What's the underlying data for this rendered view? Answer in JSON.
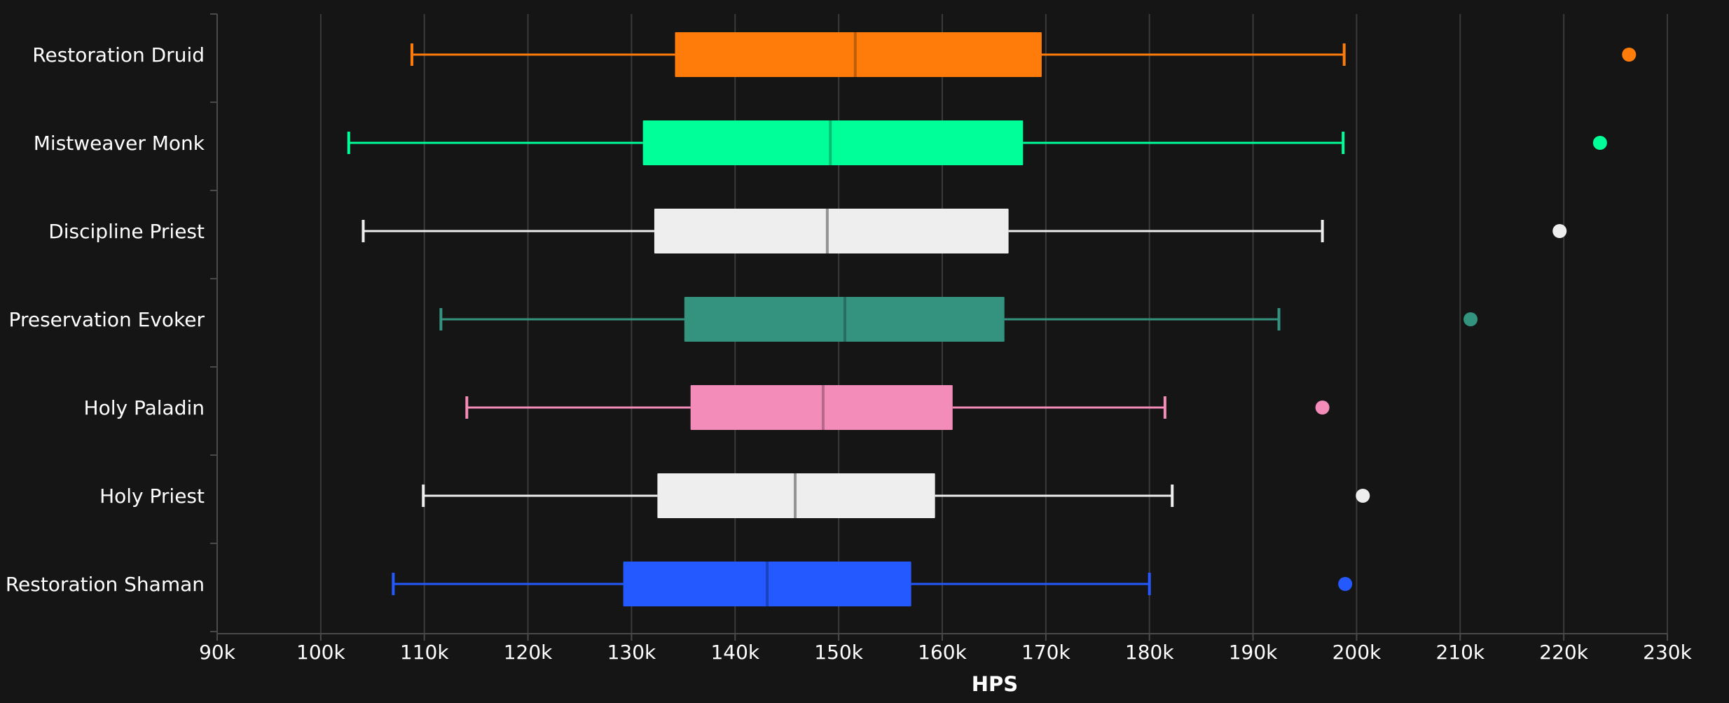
{
  "chart_data": {
    "type": "boxplot",
    "orientation": "horizontal",
    "xlabel": "HPS",
    "xlim": [
      90000,
      230000
    ],
    "x_ticks": [
      90000,
      100000,
      110000,
      120000,
      130000,
      140000,
      150000,
      160000,
      170000,
      180000,
      190000,
      200000,
      210000,
      220000,
      230000
    ],
    "x_tick_labels": [
      "90k",
      "100k",
      "110k",
      "120k",
      "130k",
      "140k",
      "150k",
      "160k",
      "170k",
      "180k",
      "190k",
      "200k",
      "210k",
      "220k",
      "230k"
    ],
    "grid": "vertical",
    "series": [
      {
        "name": "Restoration Druid",
        "color": "#ff7c0a",
        "min": 108800,
        "q1": 134200,
        "median": 151600,
        "q3": 169600,
        "max": 198800,
        "outliers": [
          226300
        ]
      },
      {
        "name": "Mistweaver Monk",
        "color": "#00ff98",
        "min": 102700,
        "q1": 131100,
        "median": 149200,
        "q3": 167800,
        "max": 198700,
        "outliers": [
          223500
        ]
      },
      {
        "name": "Discipline Priest",
        "color": "#eeeeee",
        "min": 104100,
        "q1": 132200,
        "median": 148900,
        "q3": 166400,
        "max": 196700,
        "outliers": [
          219600
        ]
      },
      {
        "name": "Preservation Evoker",
        "color": "#33937f",
        "min": 111600,
        "q1": 135100,
        "median": 150600,
        "q3": 166000,
        "max": 192500,
        "outliers": [
          211000
        ]
      },
      {
        "name": "Holy Paladin",
        "color": "#f48cba",
        "min": 114100,
        "q1": 135700,
        "median": 148500,
        "q3": 161000,
        "max": 181500,
        "outliers": [
          196700
        ]
      },
      {
        "name": "Holy Priest",
        "color": "#eeeeee",
        "min": 109900,
        "q1": 132500,
        "median": 145800,
        "q3": 159300,
        "max": 182200,
        "outliers": [
          200600
        ]
      },
      {
        "name": "Restoration Shaman",
        "color": "#2459ff",
        "min": 107000,
        "q1": 129200,
        "median": 143100,
        "q3": 157000,
        "max": 180000,
        "outliers": [
          198900
        ]
      }
    ]
  }
}
